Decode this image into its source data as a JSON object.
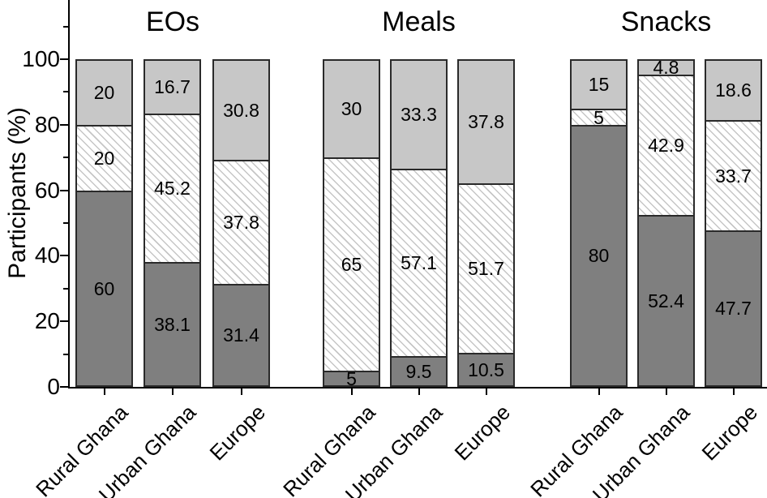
{
  "chart_data": {
    "type": "bar",
    "stacked": true,
    "title": "",
    "ylabel": "Participants (%)",
    "xlabel": "",
    "ylim": [
      0,
      100
    ],
    "yticks": [
      0,
      20,
      40,
      60,
      80,
      100
    ],
    "minor_yticks": [
      10,
      30,
      50,
      70,
      90,
      110
    ],
    "grid": false,
    "legend": "none",
    "categories": [
      "Rural Ghana",
      "Urban Ghana",
      "Europe"
    ],
    "segment_order_bottom_to_top": [
      "dark-gray-solid",
      "white-diagonal-hatch",
      "light-gray-solid"
    ],
    "groups": [
      {
        "title": "EOs",
        "bars": [
          {
            "category": "Rural Ghana",
            "bottom": 60,
            "middle": 20,
            "top": 20,
            "labels": [
              "60",
              "20",
              "20"
            ]
          },
          {
            "category": "Urban Ghana",
            "bottom": 38.1,
            "middle": 45.2,
            "top": 16.7,
            "labels": [
              "38.1",
              "45.2",
              "16.7"
            ]
          },
          {
            "category": "Europe",
            "bottom": 31.4,
            "middle": 37.8,
            "top": 30.8,
            "labels": [
              "31.4",
              "37.8",
              "30.8"
            ]
          }
        ]
      },
      {
        "title": "Meals",
        "bars": [
          {
            "category": "Rural Ghana",
            "bottom": 5,
            "middle": 65,
            "top": 30,
            "labels": [
              "5",
              "65",
              "30"
            ]
          },
          {
            "category": "Urban Ghana",
            "bottom": 9.5,
            "middle": 57.1,
            "top": 33.3,
            "labels": [
              "9.5",
              "57.1",
              "33.3"
            ]
          },
          {
            "category": "Europe",
            "bottom": 10.5,
            "middle": 51.7,
            "top": 37.8,
            "labels": [
              "10.5",
              "51.7",
              "37.8"
            ]
          }
        ]
      },
      {
        "title": "Snacks",
        "bars": [
          {
            "category": "Rural Ghana",
            "bottom": 80,
            "middle": 5,
            "top": 15,
            "labels": [
              "80",
              "5",
              "15"
            ]
          },
          {
            "category": "Urban Ghana",
            "bottom": 52.4,
            "middle": 42.9,
            "top": 4.8,
            "labels": [
              "52.4",
              "42.9",
              "4.8"
            ]
          },
          {
            "category": "Europe",
            "bottom": 47.7,
            "middle": 33.7,
            "top": 18.6,
            "labels": [
              "47.7",
              "33.7",
              "18.6"
            ]
          }
        ]
      }
    ],
    "colors": {
      "bottom_fill": "#7f7f7f",
      "top_fill": "#c7c7c7",
      "hatch_line": "#c6c6c6",
      "hatch_background": "#ffffff",
      "segment_border": "#2a2a2a",
      "axis": "#000000",
      "text": "#000000",
      "background": "#ffffff"
    }
  }
}
